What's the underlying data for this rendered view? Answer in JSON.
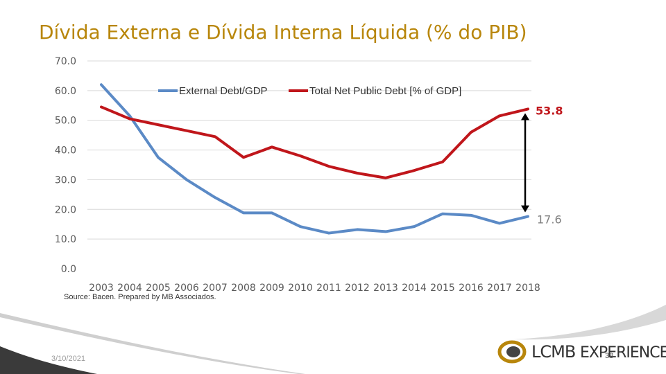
{
  "slide": {
    "title": "Dívida Externa e Dívida Interna Líquida (% do PIB)",
    "date": "3/10/2021",
    "page_number": "38",
    "logo_text_a": "LCMB",
    "logo_text_b": "EXPERIENCE"
  },
  "colors": {
    "external": "#5b8ac6",
    "total": "#c0161b",
    "title": "#b8860b",
    "arrow": "#000000"
  },
  "chart_data": {
    "type": "line",
    "title": "",
    "x": [
      "2003",
      "2004",
      "2005",
      "2006",
      "2007",
      "2008",
      "2009",
      "2010",
      "2011",
      "2012",
      "2013",
      "2014",
      "2015",
      "2016",
      "2017",
      "2018"
    ],
    "series": [
      {
        "name": "External Debt/GDP",
        "values": [
          62.0,
          51.5,
          37.5,
          30.0,
          24.0,
          18.8,
          18.8,
          14.2,
          12.0,
          13.2,
          12.5,
          14.2,
          18.5,
          18.0,
          15.3,
          17.6
        ]
      },
      {
        "name": "Total Net Public Debt [% of GDP]",
        "values": [
          54.5,
          50.5,
          48.5,
          46.5,
          44.5,
          37.5,
          41.0,
          38.0,
          34.5,
          32.2,
          30.6,
          33.1,
          36.0,
          46.0,
          51.5,
          53.8
        ]
      }
    ],
    "yticks": [
      "70.0",
      "60.0",
      "50.0",
      "40.0",
      "30.0",
      "20.0",
      "10.0",
      "0.0"
    ],
    "ylim": [
      0,
      70
    ],
    "end_labels": {
      "external": "17.6",
      "total": "53.8"
    },
    "source": "Source: Bacen. Prepared by MB Associados.",
    "legend_position": "top"
  }
}
